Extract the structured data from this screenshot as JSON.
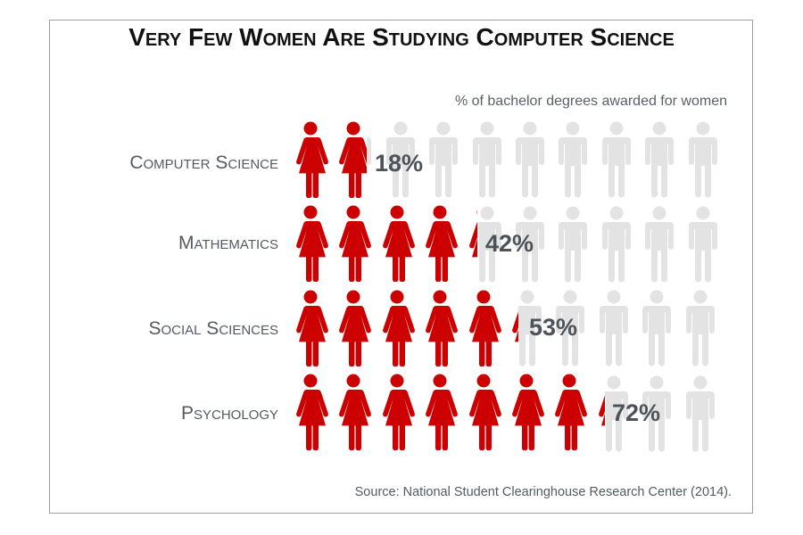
{
  "title": "Very Few Women Are Studying Computer Science",
  "subtitle": "% of bachelor degrees awarded for women",
  "source": "Source: National Student Clearinghouse Research Center (2014).",
  "colors": {
    "female": "#cc0000",
    "male": "#e3e3e3",
    "label": "#555a61",
    "percent": "#4d535b"
  },
  "rows": [
    {
      "label": "Computer Science",
      "percent_label": "18%"
    },
    {
      "label": "Mathematics",
      "percent_label": "42%"
    },
    {
      "label": "Social Sciences",
      "percent_label": "53%"
    },
    {
      "label": "Psychology",
      "percent_label": "72%"
    }
  ],
  "chart_data": {
    "type": "bar",
    "title": "Very Few Women Are Studying Computer Science",
    "subtitle": "% of bachelor degrees awarded for women",
    "categories": [
      "Computer Science",
      "Mathematics",
      "Social Sciences",
      "Psychology"
    ],
    "values": [
      18,
      42,
      53,
      72
    ],
    "unit": "%",
    "xlabel": "",
    "ylabel": "",
    "ylim": [
      0,
      100
    ],
    "orientation": "horizontal",
    "style": "pictogram (10 figures per row, female figures red, male figures grey)",
    "grid": false,
    "legend": null,
    "annotation": "Source: National Student Clearinghouse Research Center (2014)."
  }
}
